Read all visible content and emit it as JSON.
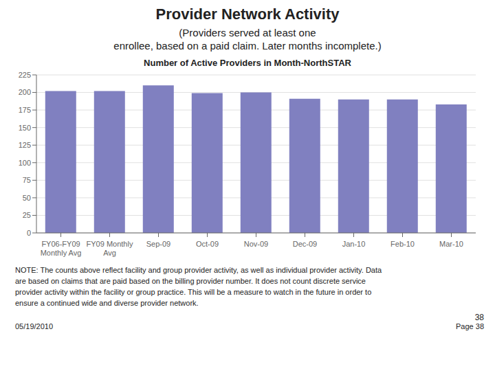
{
  "chart_data": {
    "type": "bar",
    "title": "Provider Network Activity",
    "subtitle": [
      "(Providers served at least one",
      "enrollee, based on a paid claim. Later months incomplete.)"
    ],
    "annotations": [
      "Number of Active Providers in Month-NorthSTAR",
      "NOTE:  The counts above reflect facility and group provider activity, as well as individual provider activity.  Data\nare based on claims that are paid based on the billing provider number.  It does not count discrete service\nprovider activity within the facility or group practice.  This will be a measure to watch in the future in order to\nensure a continued wide and diverse provider network.",
      "05/19/2010",
      "38",
      "Page 38"
    ],
    "categories": [
      "FY06-FY09\nMonthly Avg",
      "FY09 Monthly\nAvg",
      "Sep-09",
      "Oct-09",
      "Nov-09",
      "Dec-09",
      "Jan-10",
      "Feb-10",
      "Mar-10"
    ],
    "values": [
      202,
      202,
      210,
      199,
      200,
      191,
      190,
      190,
      183
    ],
    "color": "#8080c0",
    "ylim": [
      0,
      225
    ],
    "yticks": [
      0,
      25,
      50,
      75,
      100,
      125,
      150,
      175,
      200,
      225
    ],
    "grid": true
  }
}
